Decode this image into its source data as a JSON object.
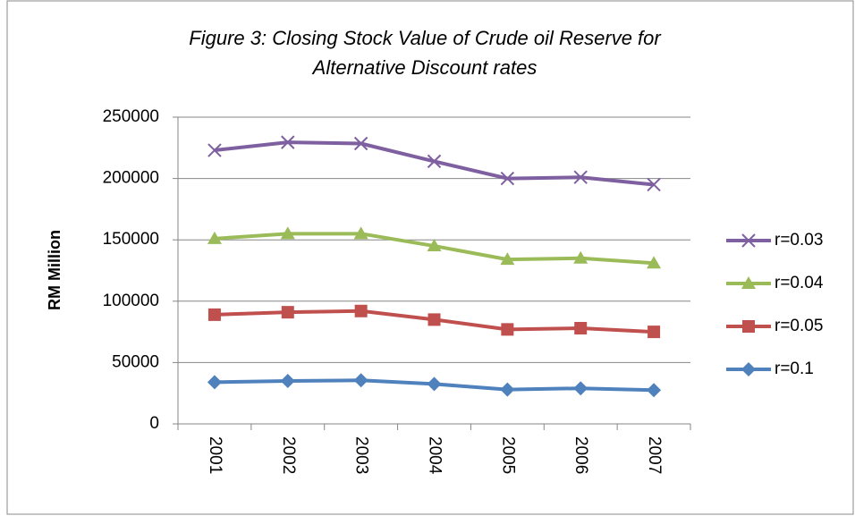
{
  "chart_data": {
    "type": "line",
    "title": [
      "Figure 3: Closing Stock Value of Crude oil Reserve for",
      "Alternative Discount rates"
    ],
    "y_label": "RM Million",
    "categories": [
      "2001",
      "2002",
      "2003",
      "2004",
      "2005",
      "2006",
      "2007"
    ],
    "series": [
      {
        "name": "r=0.03",
        "color": "#7e60a0",
        "marker": "x",
        "values": [
          223000,
          229500,
          228500,
          214000,
          200000,
          201000,
          195000
        ]
      },
      {
        "name": "r=0.04",
        "color": "#9bbb59",
        "marker": "triangle",
        "values": [
          151000,
          155000,
          155000,
          145000,
          134000,
          135000,
          131000
        ]
      },
      {
        "name": "r=0.05",
        "color": "#c0504d",
        "marker": "square",
        "values": [
          89000,
          91000,
          92000,
          85000,
          77000,
          78000,
          75000
        ]
      },
      {
        "name": "r=0.1",
        "color": "#4f81bd",
        "marker": "diamond",
        "values": [
          34000,
          35000,
          35500,
          32500,
          28000,
          29000,
          27500
        ]
      }
    ],
    "ylim": [
      0,
      250000
    ],
    "yticks": [
      0,
      50000,
      100000,
      150000,
      200000,
      250000
    ],
    "grid": true,
    "legend": "right"
  }
}
